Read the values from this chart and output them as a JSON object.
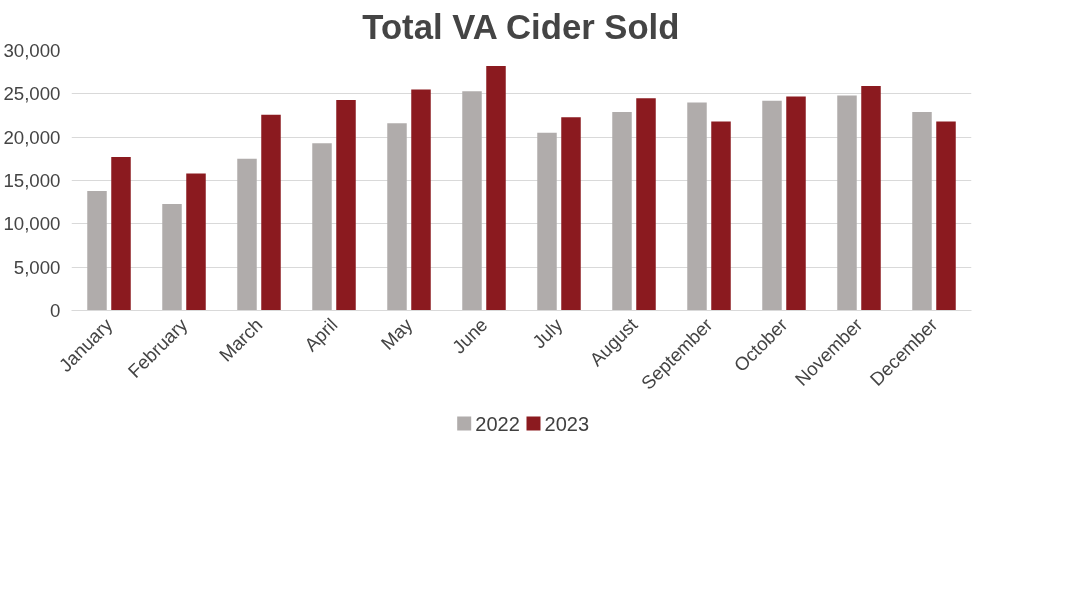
{
  "chart_data": {
    "type": "bar",
    "title": "Total VA Cider Sold",
    "categories": [
      "January",
      "February",
      "March",
      "April",
      "May",
      "June",
      "July",
      "August",
      "September",
      "October",
      "November",
      "December"
    ],
    "series": [
      {
        "name": "2022",
        "color": "#b0acab",
        "values": [
          13800,
          12300,
          17500,
          19300,
          21600,
          25300,
          20500,
          22900,
          24000,
          24200,
          24800,
          22900
        ]
      },
      {
        "name": "2023",
        "color": "#8b1a1f",
        "values": [
          17700,
          15800,
          22600,
          24300,
          25500,
          28200,
          22300,
          24500,
          21800,
          24700,
          25900,
          21800
        ]
      }
    ],
    "ylim": [
      0,
      30000
    ],
    "yticks": [
      {
        "value": 0,
        "label": "0"
      },
      {
        "value": 5000,
        "label": "5,000"
      },
      {
        "value": 10000,
        "label": "10,000"
      },
      {
        "value": 15000,
        "label": "15,000"
      },
      {
        "value": 20000,
        "label": "20,000"
      },
      {
        "value": 25000,
        "label": "25,000"
      },
      {
        "value": 30000,
        "label": "30,000"
      }
    ],
    "grid": "y",
    "legend": "bottom"
  }
}
